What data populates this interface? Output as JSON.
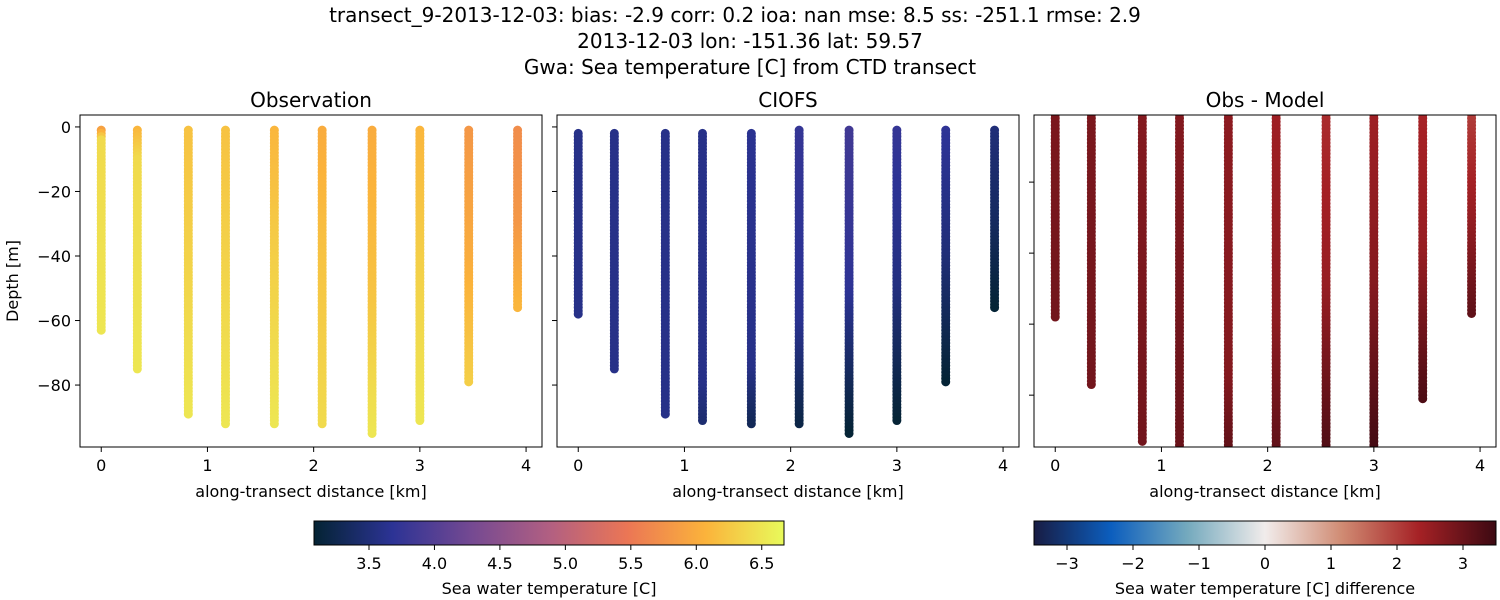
{
  "title_lines": [
    "transect_9-2013-12-03: bias: -2.9  corr: 0.2  ioa: nan  mse: 8.5  ss: -251.1  rmse: 2.9",
    "2013-12-03 lon: -151.36 lat: 59.57",
    "Gwa: Sea temperature [C] from CTD transect"
  ],
  "chart_data": [
    {
      "type": "scatter",
      "title": "Observation",
      "xlabel": "along-transect distance [km]",
      "ylabel": "Depth [m]",
      "xlim": [
        -0.2,
        4.15
      ],
      "ylim": [
        -99.2,
        3.7
      ],
      "xticks": [
        0,
        1,
        2,
        3,
        4
      ],
      "yticks": [
        0,
        -20,
        -40,
        -60,
        -80
      ],
      "colormap": "thermal",
      "vmin": 3.08,
      "vmax": 6.67,
      "stations": [
        {
          "x": 0,
          "top": -1,
          "bottom": -63,
          "profile": [
            [
              -1,
              5.9
            ],
            [
              -4,
              6.4
            ],
            [
              -63,
              6.5
            ]
          ]
        },
        {
          "x": 0.34,
          "top": -1,
          "bottom": -75,
          "profile": [
            [
              -1,
              6.1
            ],
            [
              -10,
              6.4
            ],
            [
              -75,
              6.5
            ]
          ]
        },
        {
          "x": 0.82,
          "top": -1,
          "bottom": -89,
          "profile": [
            [
              -1,
              6.2
            ],
            [
              -89,
              6.5
            ]
          ]
        },
        {
          "x": 1.17,
          "top": -1,
          "bottom": -92,
          "profile": [
            [
              -1,
              6.2
            ],
            [
              -92,
              6.5
            ]
          ]
        },
        {
          "x": 1.63,
          "top": -1,
          "bottom": -92,
          "profile": [
            [
              -1,
              6.1
            ],
            [
              -40,
              6.3
            ],
            [
              -92,
              6.5
            ]
          ]
        },
        {
          "x": 2.08,
          "top": -1,
          "bottom": -92,
          "profile": [
            [
              -1,
              6.0
            ],
            [
              -40,
              6.2
            ],
            [
              -92,
              6.4
            ]
          ]
        },
        {
          "x": 2.55,
          "top": -1,
          "bottom": -95,
          "profile": [
            [
              -1,
              6.0
            ],
            [
              -50,
              6.2
            ],
            [
              -95,
              6.5
            ]
          ]
        },
        {
          "x": 3.0,
          "top": -1,
          "bottom": -91,
          "profile": [
            [
              -1,
              6.1
            ],
            [
              -40,
              6.3
            ],
            [
              -91,
              6.5
            ]
          ]
        },
        {
          "x": 3.46,
          "top": -1,
          "bottom": -79,
          "profile": [
            [
              -1,
              5.8
            ],
            [
              -40,
              6.0
            ],
            [
              -79,
              6.3
            ]
          ]
        },
        {
          "x": 3.92,
          "top": -1,
          "bottom": -56,
          "profile": [
            [
              -1,
              5.7
            ],
            [
              -30,
              5.8
            ],
            [
              -56,
              6.1
            ]
          ]
        }
      ]
    },
    {
      "type": "scatter",
      "title": "CIOFS",
      "xlabel": "along-transect distance [km]",
      "xlim": [
        -0.2,
        4.15
      ],
      "ylim": [
        -99.2,
        3.7
      ],
      "xticks": [
        0,
        1,
        2,
        3,
        4
      ],
      "yticks": [
        0,
        -20,
        -40,
        -60,
        -80
      ],
      "colormap": "thermal",
      "vmin": 3.08,
      "vmax": 6.67,
      "stations": [
        {
          "x": 0,
          "top": -2,
          "bottom": -58,
          "profile": [
            [
              -2,
              3.6
            ],
            [
              -58,
              3.6
            ]
          ]
        },
        {
          "x": 0.34,
          "top": -2,
          "bottom": -75,
          "profile": [
            [
              -2,
              3.6
            ],
            [
              -75,
              3.6
            ]
          ]
        },
        {
          "x": 0.82,
          "top": -2,
          "bottom": -89,
          "profile": [
            [
              -2,
              3.6
            ],
            [
              -89,
              3.6
            ]
          ]
        },
        {
          "x": 1.17,
          "top": -2,
          "bottom": -91,
          "profile": [
            [
              -2,
              3.6
            ],
            [
              -80,
              3.6
            ],
            [
              -91,
              3.45
            ]
          ]
        },
        {
          "x": 1.63,
          "top": -2,
          "bottom": -92,
          "profile": [
            [
              -2,
              3.65
            ],
            [
              -75,
              3.6
            ],
            [
              -92,
              3.3
            ]
          ]
        },
        {
          "x": 2.08,
          "top": -1,
          "bottom": -92,
          "profile": [
            [
              -1,
              3.75
            ],
            [
              -60,
              3.65
            ],
            [
              -92,
              3.2
            ]
          ]
        },
        {
          "x": 2.55,
          "top": -1,
          "bottom": -95,
          "profile": [
            [
              -1,
              3.85
            ],
            [
              -50,
              3.7
            ],
            [
              -95,
              3.1
            ]
          ]
        },
        {
          "x": 3.0,
          "top": -1,
          "bottom": -91,
          "profile": [
            [
              -1,
              3.75
            ],
            [
              -50,
              3.55
            ],
            [
              -91,
              3.1
            ]
          ]
        },
        {
          "x": 3.46,
          "top": -1,
          "bottom": -79,
          "profile": [
            [
              -1,
              3.7
            ],
            [
              -40,
              3.5
            ],
            [
              -79,
              3.1
            ]
          ]
        },
        {
          "x": 3.92,
          "top": -1,
          "bottom": -56,
          "profile": [
            [
              -1,
              3.5
            ],
            [
              -30,
              3.35
            ],
            [
              -56,
              3.1
            ]
          ]
        }
      ]
    },
    {
      "type": "scatter",
      "title": "Obs - Model",
      "xlabel": "along-transect distance [km]",
      "xlim": [
        -0.2,
        4.15
      ],
      "ylim": [
        -94.6,
        -1.1
      ],
      "xticks": [
        0,
        1,
        2,
        3,
        4
      ],
      "yticks": [
        -20,
        -40,
        -60,
        -80
      ],
      "colormap": "balance",
      "vmin": -3.5,
      "vmax": 3.5,
      "stations": [
        {
          "x": 0,
          "top": 0,
          "bottom": -58,
          "profile": [
            [
              0,
              2.8
            ],
            [
              -58,
              2.9
            ]
          ]
        },
        {
          "x": 0.34,
          "top": 0,
          "bottom": -77,
          "profile": [
            [
              0,
              2.8
            ],
            [
              -77,
              2.9
            ]
          ]
        },
        {
          "x": 0.82,
          "top": 0,
          "bottom": -93,
          "profile": [
            [
              0,
              2.7
            ],
            [
              -93,
              2.9
            ]
          ]
        },
        {
          "x": 1.17,
          "top": 0,
          "bottom": -95,
          "profile": [
            [
              0,
              2.7
            ],
            [
              -95,
              3.0
            ]
          ]
        },
        {
          "x": 1.63,
          "top": 0,
          "bottom": -96,
          "profile": [
            [
              0,
              2.6
            ],
            [
              -75,
              2.7
            ],
            [
              -96,
              3.1
            ]
          ]
        },
        {
          "x": 2.08,
          "top": 0,
          "bottom": -96,
          "profile": [
            [
              0,
              2.4
            ],
            [
              -60,
              2.6
            ],
            [
              -96,
              3.1
            ]
          ]
        },
        {
          "x": 2.55,
          "top": 0,
          "bottom": -97,
          "profile": [
            [
              0,
              2.2
            ],
            [
              -50,
              2.5
            ],
            [
              -97,
              3.3
            ]
          ]
        },
        {
          "x": 3.0,
          "top": 0,
          "bottom": -95,
          "profile": [
            [
              0,
              2.4
            ],
            [
              -50,
              2.7
            ],
            [
              -95,
              3.4
            ]
          ]
        },
        {
          "x": 3.46,
          "top": 0,
          "bottom": -81,
          "profile": [
            [
              0,
              2.3
            ],
            [
              -40,
              2.5
            ],
            [
              -81,
              3.3
            ]
          ]
        },
        {
          "x": 3.92,
          "top": 0,
          "bottom": -57,
          "profile": [
            [
              0,
              2.0
            ],
            [
              -30,
              2.5
            ],
            [
              -57,
              3.1
            ]
          ]
        }
      ]
    }
  ],
  "colorbars": [
    {
      "label": "Sea water temperature [C]",
      "vmin": 3.08,
      "vmax": 6.67,
      "ticks": [
        "3.5",
        "4.0",
        "4.5",
        "5.0",
        "5.5",
        "6.0",
        "6.5"
      ],
      "stops": [
        "#042333",
        "#2c3395",
        "#744992",
        "#b15f82",
        "#eb7655",
        "#fbb33b",
        "#e8fa5b"
      ]
    },
    {
      "label": "Sea water temperature [C] difference",
      "vmin": -3.5,
      "vmax": 3.5,
      "ticks": [
        "−3",
        "−2",
        "−1",
        "0",
        "1",
        "2",
        "3"
      ],
      "stops": [
        "#181c43",
        "#0c5ebe",
        "#75aabe",
        "#f1eceb",
        "#d08b73",
        "#a52125",
        "#3c0912"
      ]
    }
  ]
}
